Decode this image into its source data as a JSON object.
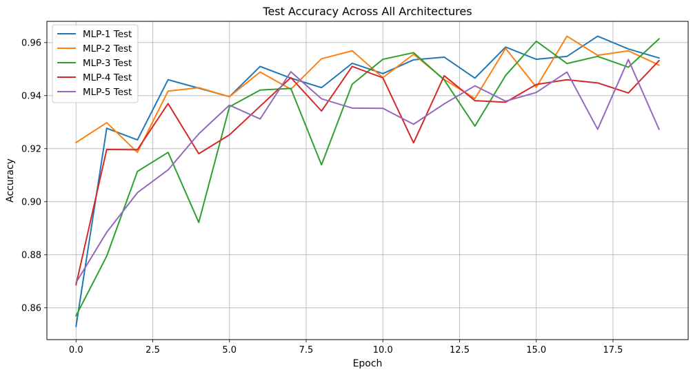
{
  "chart_data": {
    "type": "line",
    "title": "Test Accuracy Across All Architectures",
    "xlabel": "Epoch",
    "ylabel": "Accuracy",
    "xlim": [
      -0.95,
      19.95
    ],
    "ylim": [
      0.848,
      0.968
    ],
    "x_ticks": [
      0.0,
      2.5,
      5.0,
      7.5,
      10.0,
      12.5,
      15.0,
      17.5
    ],
    "x_tick_labels": [
      "0.0",
      "2.5",
      "5.0",
      "7.5",
      "10.0",
      "12.5",
      "15.0",
      "17.5"
    ],
    "y_ticks": [
      0.86,
      0.88,
      0.9,
      0.92,
      0.94,
      0.96
    ],
    "y_tick_labels": [
      "0.86",
      "0.88",
      "0.90",
      "0.92",
      "0.94",
      "0.96"
    ],
    "grid": true,
    "legend_position": "top-left",
    "x": [
      0,
      1,
      2,
      3,
      4,
      5,
      6,
      7,
      8,
      9,
      10,
      11,
      12,
      13,
      14,
      15,
      16,
      17,
      18,
      19
    ],
    "series": [
      {
        "name": "MLP-1 Test",
        "color": "#1f77b4",
        "values": [
          0.853,
          0.9277,
          0.9233,
          0.946,
          0.9428,
          0.9396,
          0.951,
          0.9466,
          0.943,
          0.9522,
          0.9483,
          0.9535,
          0.9545,
          0.9466,
          0.9583,
          0.9537,
          0.9548,
          0.9624,
          0.9576,
          0.9542
        ]
      },
      {
        "name": "MLP-2 Test",
        "color": "#ff7f0e",
        "values": [
          0.9223,
          0.9298,
          0.9186,
          0.9417,
          0.943,
          0.9396,
          0.9489,
          0.9424,
          0.9539,
          0.9569,
          0.9468,
          0.9556,
          0.9461,
          0.9389,
          0.9578,
          0.9432,
          0.9624,
          0.9552,
          0.9569,
          0.9515
        ]
      },
      {
        "name": "MLP-3 Test",
        "color": "#2ca02c",
        "values": [
          0.857,
          0.8795,
          0.9114,
          0.9186,
          0.8922,
          0.9358,
          0.9421,
          0.9427,
          0.9139,
          0.9443,
          0.9537,
          0.9562,
          0.9459,
          0.9285,
          0.9476,
          0.9605,
          0.9521,
          0.9548,
          0.9507,
          0.9614
        ]
      },
      {
        "name": "MLP-4 Test",
        "color": "#d62728",
        "values": [
          0.8687,
          0.9197,
          0.9196,
          0.937,
          0.9181,
          0.9252,
          0.936,
          0.9468,
          0.9342,
          0.951,
          0.9467,
          0.9222,
          0.9475,
          0.9381,
          0.9375,
          0.9442,
          0.946,
          0.9448,
          0.941,
          0.9532
        ]
      },
      {
        "name": "MLP-5 Test",
        "color": "#9467bd",
        "values": [
          0.8695,
          0.8885,
          0.9034,
          0.912,
          0.9256,
          0.9364,
          0.9312,
          0.949,
          0.9388,
          0.9353,
          0.9352,
          0.9292,
          0.9369,
          0.9437,
          0.9379,
          0.9412,
          0.9489,
          0.9273,
          0.9536,
          0.9273
        ]
      }
    ]
  }
}
